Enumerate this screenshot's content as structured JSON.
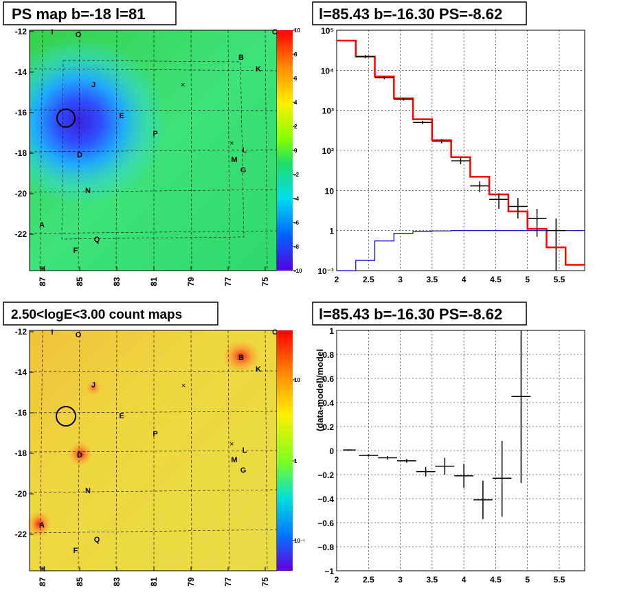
{
  "panels": {
    "tl_title": "PS map b=-18 l=81",
    "tr_title": "l=85.43 b=-16.30 PS=-8.62",
    "bl_title": "2.50<logE<3.00 count maps",
    "br_title": "l=85.43 b=-16.30 PS=-8.62"
  },
  "colors": {
    "red": "#ff0000",
    "blue": "#0000cc",
    "black": "#000000"
  },
  "map_axes": {
    "x_ticks": [
      "87",
      "85",
      "83",
      "81",
      "79",
      "77",
      "75"
    ],
    "y_ticks": [
      "-12",
      "-14",
      "-16",
      "-18",
      "-20",
      "-22"
    ],
    "ps_scale_ticks": [
      "10",
      "8",
      "6",
      "4",
      "2",
      "0",
      "-2",
      "-4",
      "-6",
      "-8",
      "-10"
    ],
    "count_scale_ticks": [
      "10",
      "1",
      "10⁻¹"
    ]
  },
  "source_labels": [
    "A",
    "B",
    "C",
    "D",
    "E",
    "F",
    "G",
    "H",
    "I",
    "J",
    "K",
    "L",
    "M",
    "N",
    "O",
    "P",
    "Q"
  ],
  "chart_data": [
    {
      "type": "line",
      "title": "l=85.43 b=-16.30 PS=-8.62",
      "xlabel": "",
      "ylabel": "",
      "xlim": [
        2,
        5.9
      ],
      "ylim": [
        0.1,
        100000
      ],
      "yscale": "log",
      "grid": true,
      "x_ticks": [
        "2",
        "2.5",
        "3",
        "3.5",
        "4",
        "4.5",
        "5",
        "5.5"
      ],
      "y_ticks": [
        "10⁻¹",
        "1",
        "10",
        "10²",
        "10³",
        "10⁴",
        "10⁵"
      ],
      "series": [
        {
          "style": "step",
          "color": "#ff0000",
          "edges": [
            2,
            2.3,
            2.6,
            2.9,
            3.2,
            3.5,
            3.8,
            4.1,
            4.4,
            4.7,
            5.0,
            5.3,
            5.6,
            5.9
          ],
          "values": [
            55000,
            22000,
            7000,
            2000,
            600,
            180,
            68,
            22,
            8,
            3,
            1.1,
            0.38,
            0.14
          ]
        },
        {
          "style": "step",
          "color": "#0000cc",
          "edges": [
            2,
            2.3,
            2.6,
            2.9,
            3.2,
            3.5,
            3.8,
            4.1,
            4.4,
            4.7,
            5.0,
            5.3,
            5.6,
            5.9
          ],
          "values": [
            0.1,
            0.18,
            0.55,
            0.85,
            0.95,
            0.98,
            1.0,
            1.0,
            1.0,
            1.0,
            1.0,
            1.0,
            1.0
          ]
        },
        {
          "style": "errorbar",
          "color": "#000000",
          "x": [
            2.45,
            2.75,
            3.05,
            3.35,
            3.65,
            3.95,
            4.25,
            4.55,
            4.85,
            5.15,
            5.45
          ],
          "y": [
            22000,
            6500,
            1900,
            500,
            170,
            55,
            13,
            6,
            4,
            2,
            1
          ],
          "xerr": [
            0.15,
            0.15,
            0.15,
            0.15,
            0.15,
            0.15,
            0.15,
            0.15,
            0.15,
            0.15,
            0.15
          ],
          "ylo": [
            20000,
            6000,
            1750,
            450,
            150,
            45,
            9,
            3.5,
            2,
            0.7,
            0.1
          ],
          "yhi": [
            24000,
            7000,
            2050,
            550,
            190,
            65,
            17,
            8.5,
            6.5,
            3.5,
            2
          ]
        }
      ]
    },
    {
      "type": "scatter",
      "title": "l=85.43 b=-16.30 PS=-8.62",
      "xlabel": "",
      "ylabel": "(data-model)/model",
      "xlim": [
        2,
        5.9
      ],
      "ylim": [
        -1,
        1
      ],
      "grid": true,
      "x_ticks": [
        "2",
        "2.5",
        "3",
        "3.5",
        "4",
        "4.5",
        "5",
        "5.5"
      ],
      "y_ticks": [
        "1",
        "0.8",
        "0.6",
        "0.4",
        "0.2",
        "0",
        "−0.2",
        "−0.4",
        "−0.6",
        "−0.8",
        "−1"
      ],
      "series": [
        {
          "style": "errorbar",
          "color": "#000000",
          "x": [
            2.2,
            2.5,
            2.8,
            3.1,
            3.4,
            3.7,
            4.0,
            4.3,
            4.6,
            4.9
          ],
          "y": [
            0.005,
            -0.04,
            -0.06,
            -0.085,
            -0.175,
            -0.13,
            -0.21,
            -0.41,
            -0.23,
            0.45
          ],
          "xerr": [
            0.1,
            0.15,
            0.15,
            0.15,
            0.15,
            0.15,
            0.15,
            0.15,
            0.15,
            0.15
          ],
          "ylo": [
            0.0,
            -0.05,
            -0.075,
            -0.1,
            -0.215,
            -0.2,
            -0.31,
            -0.57,
            -0.55,
            -0.27
          ],
          "yhi": [
            0.01,
            -0.03,
            -0.045,
            -0.07,
            -0.135,
            -0.06,
            -0.11,
            -0.25,
            0.08,
            1.0
          ]
        }
      ]
    }
  ]
}
